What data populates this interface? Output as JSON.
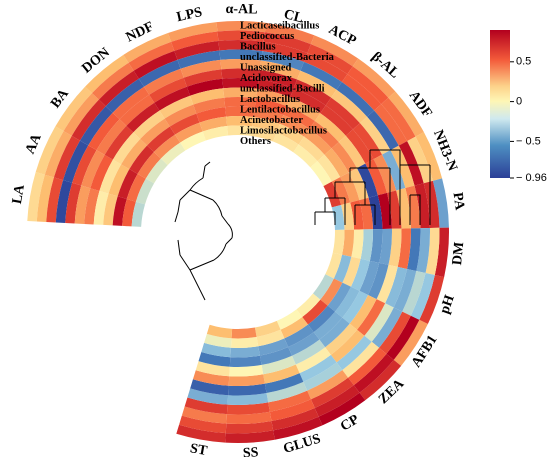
{
  "chart_data": {
    "type": "heatmap",
    "variables": [
      "LA",
      "AA",
      "BA",
      "DON",
      "NDF",
      "LPS",
      "α-AL",
      "CL",
      "ACP",
      "β-AL",
      "ADF",
      "NH3-N",
      "PA",
      "DM",
      "pH",
      "AFB1",
      "ZEA",
      "CP",
      "GLUS",
      "SS",
      "ST"
    ],
    "genera": [
      "Lacticaseibacillus",
      "Pediococcus",
      "Bacillus",
      "unclassified-Bacteria",
      "Unassigned",
      "Acidovorax",
      "unclassified-Bacilli",
      "Lactobacillus",
      "Lentilactobacillus",
      "Acinetobacter",
      "Limosilactobacillus",
      "Others"
    ],
    "values": [
      [
        0.15,
        0.3,
        0.65,
        -0.9,
        0.7,
        0.4,
        0.5,
        0.05,
        0.25,
        0.85,
        0.6,
        -0.2
      ],
      [
        0.2,
        0.35,
        0.7,
        -0.85,
        0.65,
        0.45,
        0.6,
        0.1,
        0.3,
        0.8,
        0.55,
        -0.15
      ],
      [
        0.25,
        0.4,
        0.75,
        -0.8,
        0.6,
        0.5,
        0.7,
        0.15,
        0.35,
        0.75,
        0.5,
        -0.1
      ],
      [
        0.3,
        0.5,
        0.8,
        -0.75,
        0.55,
        0.55,
        0.8,
        0.2,
        0.4,
        0.7,
        0.45,
        -0.05
      ],
      [
        0.35,
        0.55,
        0.85,
        -0.7,
        0.5,
        0.65,
        0.85,
        0.25,
        0.45,
        0.65,
        0.4,
        0.0
      ],
      [
        0.4,
        0.6,
        0.8,
        -0.65,
        0.45,
        0.7,
        0.9,
        0.3,
        0.5,
        0.6,
        0.35,
        0.05
      ],
      [
        0.45,
        0.65,
        0.75,
        -0.6,
        0.4,
        0.75,
        0.85,
        0.35,
        0.55,
        0.55,
        0.3,
        0.1
      ],
      [
        0.5,
        0.7,
        0.7,
        -0.55,
        0.35,
        0.8,
        0.8,
        0.4,
        0.6,
        0.5,
        0.25,
        0.15
      ],
      [
        0.45,
        0.65,
        0.65,
        -0.6,
        0.3,
        0.75,
        0.75,
        0.35,
        0.55,
        0.45,
        0.2,
        0.1
      ],
      [
        0.4,
        0.6,
        0.6,
        -0.65,
        0.25,
        0.7,
        0.7,
        0.3,
        0.5,
        0.4,
        0.15,
        0.05
      ],
      [
        0.35,
        0.55,
        0.55,
        -0.7,
        0.2,
        0.65,
        0.65,
        0.25,
        0.45,
        0.35,
        0.1,
        0.0
      ],
      [
        0.3,
        0.2,
        0.85,
        0.3,
        -0.4,
        0.45,
        0.6,
        -0.9,
        0.25,
        0.4,
        0.5,
        0.7
      ],
      [
        -0.45,
        0.75,
        0.8,
        0.5,
        0.3,
        0.7,
        0.9,
        -0.95,
        0.55,
        0.6,
        0.2,
        -0.3
      ],
      [
        0.8,
        0.15,
        -0.4,
        -0.6,
        0.55,
        0.2,
        -0.45,
        -0.5,
        -0.25,
        0.05,
        0.35,
        0.1
      ],
      [
        0.7,
        -0.3,
        -0.2,
        -0.4,
        -0.35,
        0.1,
        -0.5,
        -0.45,
        -0.3,
        0.15,
        -0.35,
        0.1
      ],
      [
        0.4,
        0.9,
        0.65,
        -0.4,
        -0.1,
        0.55,
        0.3,
        -0.3,
        -0.35,
        -0.45,
        0.45,
        -0.2
      ],
      [
        0.75,
        0.85,
        0.6,
        0.1,
        -0.3,
        0.3,
        0.2,
        -0.4,
        -0.4,
        -0.55,
        0.65,
        0.05
      ],
      [
        0.9,
        0.8,
        0.7,
        0.4,
        -0.25,
        -0.3,
        0.05,
        -0.2,
        -0.45,
        -0.5,
        0.3,
        0.0
      ],
      [
        0.85,
        0.75,
        0.6,
        0.55,
        -0.2,
        -0.6,
        0.3,
        -0.1,
        -0.5,
        -0.45,
        0.1,
        0.2
      ],
      [
        0.8,
        0.7,
        0.55,
        0.65,
        -0.35,
        -0.7,
        0.4,
        0.0,
        -0.55,
        -0.4,
        0.05,
        0.45
      ],
      [
        0.75,
        0.65,
        0.5,
        0.7,
        -0.4,
        -0.75,
        0.45,
        0.1,
        -0.6,
        -0.35,
        -0.05,
        0.3
      ]
    ],
    "colorbar": {
      "min": -0.96,
      "max": 0.9,
      "ticks": [
        0.5,
        0,
        -0.5,
        -0.96
      ],
      "tick_labels": [
        "0.5",
        "0",
        "− 0.5",
        "− 0.96"
      ]
    },
    "colors": {
      "low": "#2b3f97",
      "mid": "#fef6b5",
      "high": "#b3001e"
    }
  }
}
